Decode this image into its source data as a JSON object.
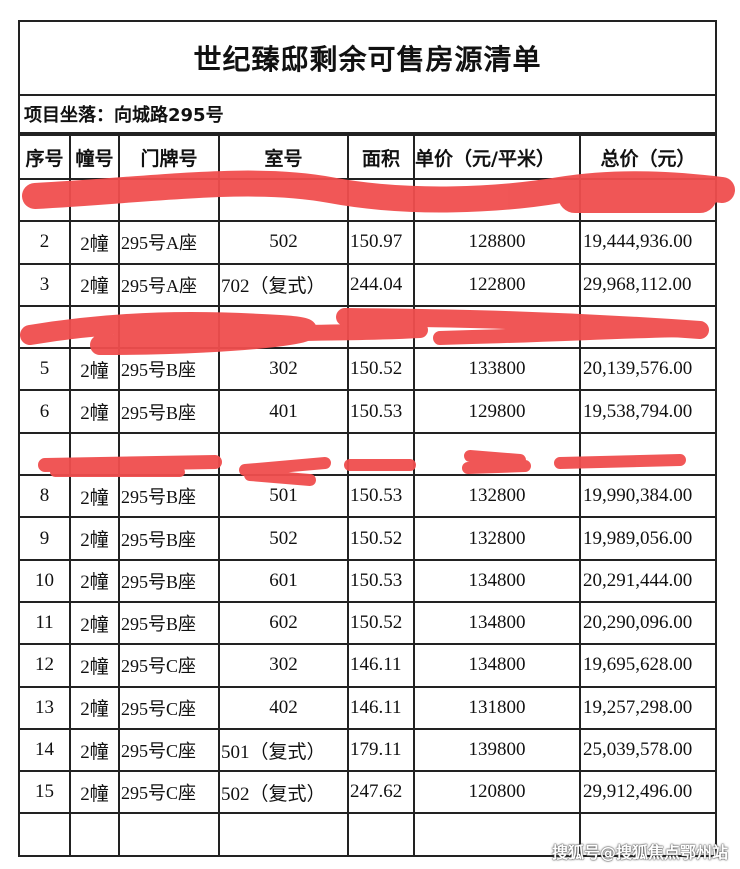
{
  "title": "世纪臻邸剩余可售房源清单",
  "location": "项目坐落：向城路295号",
  "columns": [
    "序号",
    "幢号",
    "门牌号",
    "室号",
    "面积",
    "单价（元/平米）",
    "总价（元）"
  ],
  "rows": [
    {
      "no": "",
      "bldg": "",
      "door": "",
      "room": "",
      "area": "",
      "unit": "",
      "total": "",
      "redacted": true
    },
    {
      "no": "2",
      "bldg": "2幢",
      "door": "295号A座",
      "room": "502",
      "area": "150.97",
      "unit": "128800",
      "total": "19,444,936.00"
    },
    {
      "no": "3",
      "bldg": "2幢",
      "door": "295号A座",
      "room": "702（复式）",
      "area": "244.04",
      "unit": "122800",
      "total": "29,968,112.00"
    },
    {
      "no": "",
      "bldg": "",
      "door": "",
      "room": "",
      "area": "",
      "unit": "",
      "total": "",
      "redacted": true
    },
    {
      "no": "5",
      "bldg": "2幢",
      "door": "295号B座",
      "room": "302",
      "area": "150.52",
      "unit": "133800",
      "total": "20,139,576.00"
    },
    {
      "no": "6",
      "bldg": "2幢",
      "door": "295号B座",
      "room": "401",
      "area": "150.53",
      "unit": "129800",
      "total": "19,538,794.00"
    },
    {
      "no": "",
      "bldg": "",
      "door": "",
      "room": "",
      "area": "",
      "unit": "",
      "total": "",
      "redacted": true
    },
    {
      "no": "8",
      "bldg": "2幢",
      "door": "295号B座",
      "room": "501",
      "area": "150.53",
      "unit": "132800",
      "total": "19,990,384.00"
    },
    {
      "no": "9",
      "bldg": "2幢",
      "door": "295号B座",
      "room": "502",
      "area": "150.52",
      "unit": "132800",
      "total": "19,989,056.00"
    },
    {
      "no": "10",
      "bldg": "2幢",
      "door": "295号B座",
      "room": "601",
      "area": "150.53",
      "unit": "134800",
      "total": "20,291,444.00"
    },
    {
      "no": "11",
      "bldg": "2幢",
      "door": "295号B座",
      "room": "602",
      "area": "150.52",
      "unit": "134800",
      "total": "20,290,096.00"
    },
    {
      "no": "12",
      "bldg": "2幢",
      "door": "295号C座",
      "room": "302",
      "area": "146.11",
      "unit": "134800",
      "total": "19,695,628.00"
    },
    {
      "no": "13",
      "bldg": "2幢",
      "door": "295号C座",
      "room": "402",
      "area": "146.11",
      "unit": "131800",
      "total": "19,257,298.00"
    },
    {
      "no": "14",
      "bldg": "2幢",
      "door": "295号C座",
      "room": "501（复式）",
      "area": "179.11",
      "unit": "139800",
      "total": "25,039,578.00"
    },
    {
      "no": "15",
      "bldg": "2幢",
      "door": "295号C座",
      "room": "502（复式）",
      "area": "247.62",
      "unit": "120800",
      "total": "29,912,496.00"
    },
    {
      "no": "",
      "bldg": "",
      "door": "",
      "room": "",
      "area": "",
      "unit": "",
      "total": ""
    }
  ],
  "watermark": "搜狐号@搜狐焦点鄂州站",
  "colors": {
    "redaction": "#f04e4e",
    "border": "#222222"
  }
}
